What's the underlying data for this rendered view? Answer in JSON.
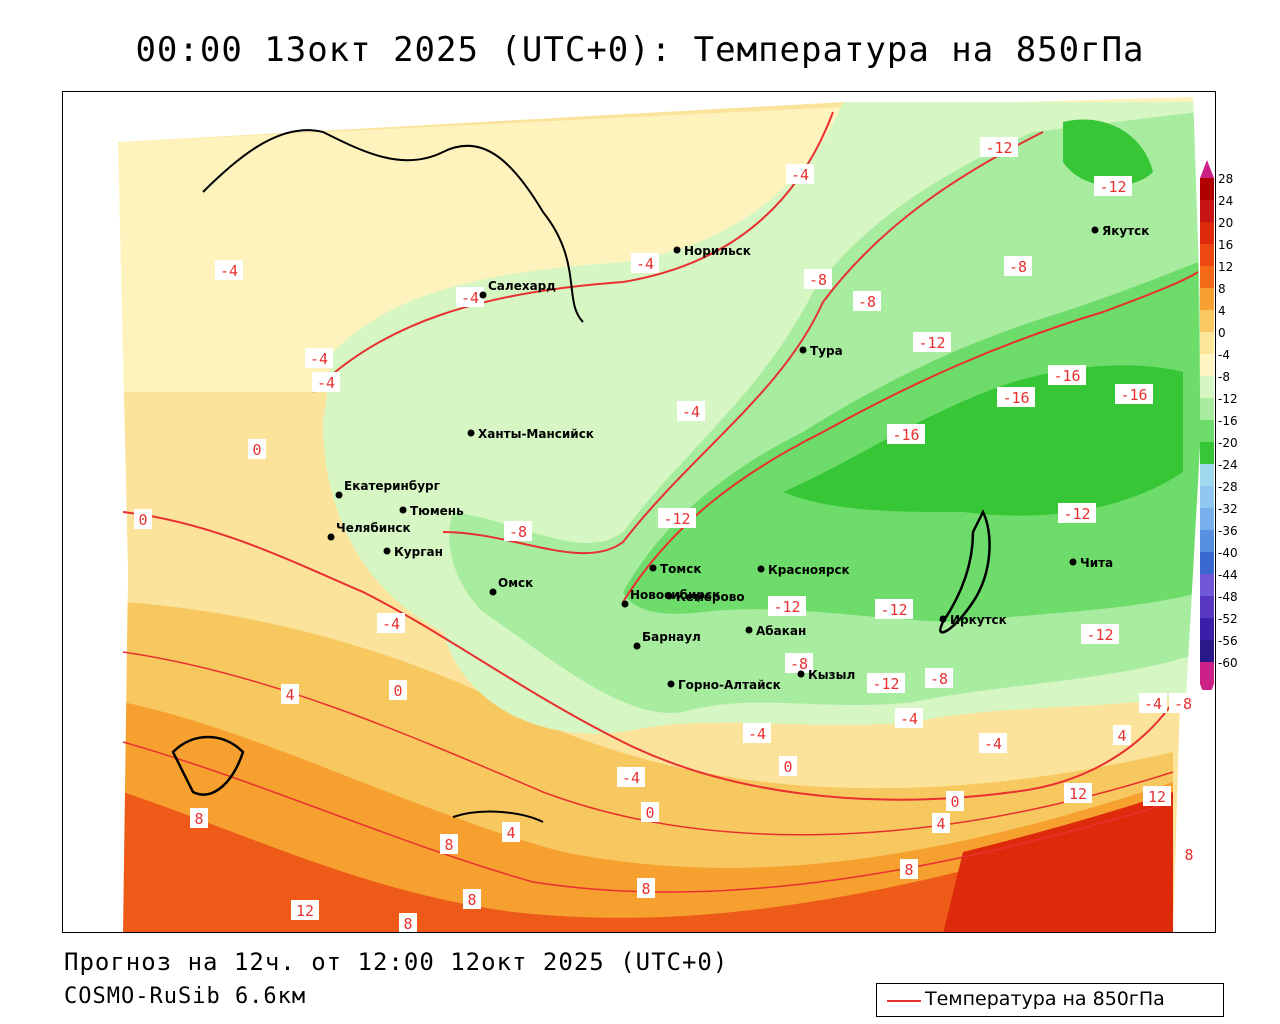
{
  "header": {
    "title": "00:00 13окт 2025 (UTC+0): Температура на 850гПа"
  },
  "footer": {
    "forecast": "Прогноз на 12ч. от 12:00 12окт 2025 (UTC+0)",
    "model": "COSMO-RuSib 6.6км"
  },
  "legend": {
    "line_label": "Температура на 850гПа",
    "line_color": "#e83030"
  },
  "colorbar": {
    "ticks": [
      "28",
      "24",
      "20",
      "16",
      "12",
      "8",
      "4",
      "0",
      "-4",
      "-8",
      "-12",
      "-16",
      "-20",
      "-24",
      "-28",
      "-32",
      "-36",
      "-40",
      "-44",
      "-48",
      "-52",
      "-56",
      "-60"
    ],
    "colors": [
      "#b00000",
      "#c81414",
      "#dc2a0a",
      "#ec4810",
      "#f46a18",
      "#f6a030",
      "#fac860",
      "#fde69a",
      "#fff5c0",
      "#d6f6c4",
      "#a8eca0",
      "#6edc6a",
      "#36c636",
      "#a0d8f0",
      "#90c8f0",
      "#78b0ec",
      "#5890e0",
      "#3868d0",
      "#7058d8",
      "#5838c0",
      "#3a20a8",
      "#281888",
      "#cc2288"
    ]
  },
  "cities": [
    {
      "name": "Норильск"
    },
    {
      "name": "Салехард"
    },
    {
      "name": "Тура"
    },
    {
      "name": "Якутск"
    },
    {
      "name": "Ханты-Мансийск"
    },
    {
      "name": "Екатеринбург"
    },
    {
      "name": "Тюмень"
    },
    {
      "name": "Челябинск"
    },
    {
      "name": "Курган"
    },
    {
      "name": "Омск"
    },
    {
      "name": "Новосибирск"
    },
    {
      "name": "Томск"
    },
    {
      "name": "Кемерово"
    },
    {
      "name": "Красноярск"
    },
    {
      "name": "Барнаул"
    },
    {
      "name": "Абакан"
    },
    {
      "name": "Горно-Алтайск"
    },
    {
      "name": "Кызыл"
    },
    {
      "name": "Иркутск"
    },
    {
      "name": "Чита"
    }
  ],
  "contour_labels": [
    "-12",
    "-12",
    "-4",
    "-4",
    "-4",
    "-8",
    "-8",
    "-4",
    "-12",
    "-4",
    "-4",
    "-16",
    "-16",
    "-16",
    "-4",
    "-8",
    "0",
    "-16",
    "-12",
    "0",
    "-8",
    "-12",
    "-12",
    "-12",
    "-12",
    "-8",
    "-4",
    "-8",
    "-12",
    "-8",
    "-4",
    "4",
    "-4",
    "0",
    "-4",
    "-4",
    "0",
    "4",
    "-4",
    "8",
    "0",
    "12",
    "0",
    "8",
    "12",
    "4",
    "8",
    "4",
    "8",
    "12",
    "8",
    "8",
    "8"
  ]
}
